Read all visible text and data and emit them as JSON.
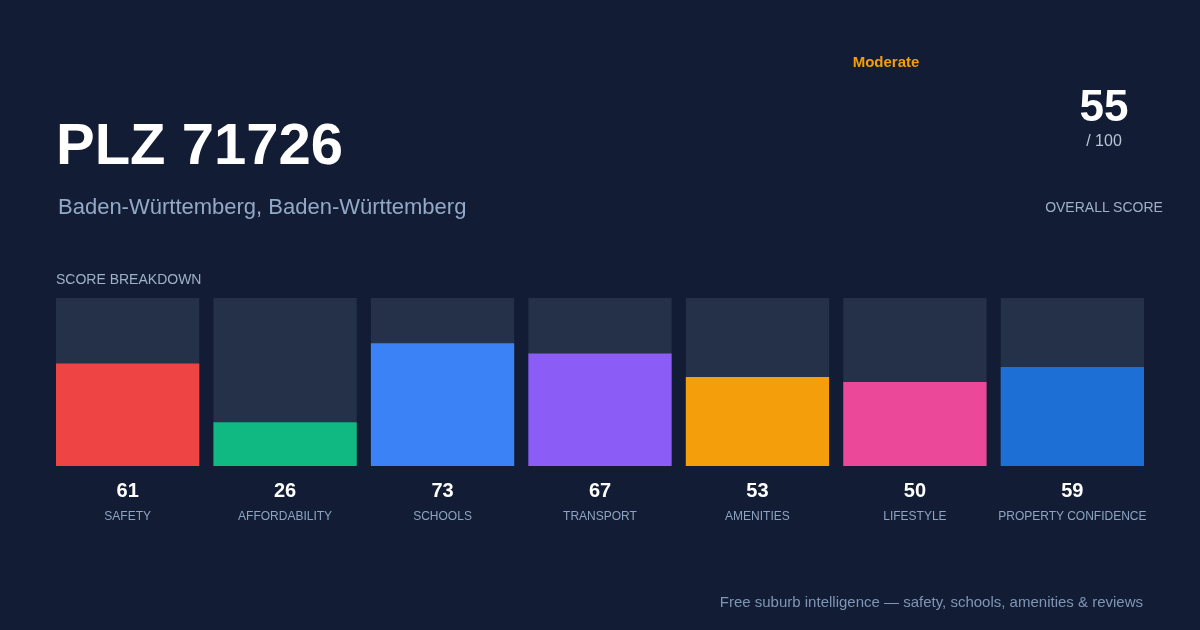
{
  "chart_data": {
    "type": "bar",
    "title": "PLZ 71726",
    "subtitle": "Baden-Württemberg, Baden-Württemberg",
    "categories": [
      "SAFETY",
      "AFFORDABILITY",
      "SCHOOLS",
      "TRANSPORT",
      "AMENITIES",
      "LIFESTYLE",
      "PROPERTY CONFIDENCE"
    ],
    "values": [
      61,
      26,
      73,
      67,
      53,
      50,
      59
    ],
    "colors": [
      "#ef4444",
      "#10b981",
      "#3b82f6",
      "#8b5cf6",
      "#f59e0b",
      "#ec4899",
      "#1d6fd6"
    ],
    "ylim": [
      0,
      100
    ],
    "data_labels": true,
    "annotations": [
      "SCORE BREAKDOWN",
      "Moderate",
      "55",
      "/ 100",
      "OVERALL SCORE",
      "Free suburb intelligence — safety, schools, amenities & reviews"
    ]
  }
}
